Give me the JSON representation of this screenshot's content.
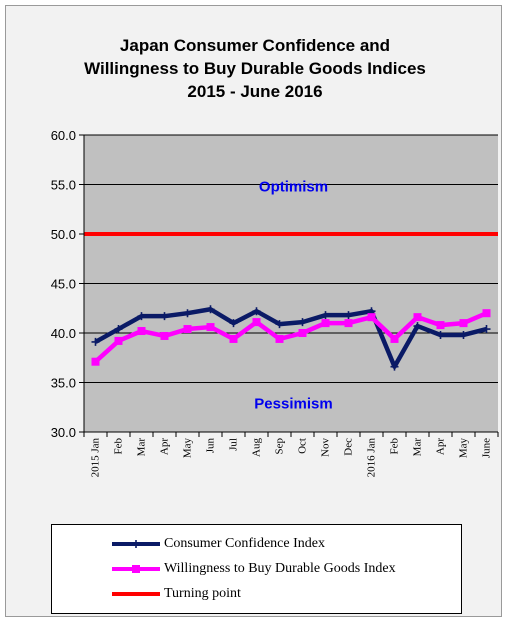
{
  "chart_data": {
    "type": "line",
    "title_lines": [
      "Japan Consumer Confidence and",
      "Willingness to Buy Durable Goods Indices",
      "2015 - June  2016"
    ],
    "categories": [
      "2015 Jan",
      "Feb",
      "Mar",
      "Apr",
      "May",
      "Jun",
      "Jul",
      "Aug",
      "Sep",
      "Oct",
      "Nov",
      "Dec",
      "2016 Jan",
      "Feb",
      "Mar",
      "Apr",
      "May",
      "June"
    ],
    "ylim": [
      30.0,
      60.0
    ],
    "yticks": [
      "30.0",
      "35.0",
      "40.0",
      "45.0",
      "50.0",
      "55.0",
      "60.0"
    ],
    "ytick_values": [
      30,
      35,
      40,
      45,
      50,
      55,
      60
    ],
    "grid": true,
    "series": [
      {
        "name": "Consumer Confidence Index",
        "color": "#0a1a66",
        "marker": "plus",
        "values": [
          39.1,
          40.4,
          41.7,
          41.7,
          42.0,
          42.4,
          41.0,
          42.2,
          40.9,
          41.1,
          41.8,
          41.8,
          42.2,
          36.6,
          40.7,
          39.8,
          39.8,
          40.4
        ]
      },
      {
        "name": "Willingness to Buy Durable Goods Index",
        "color": "#ff00ff",
        "marker": "square",
        "values": [
          37.1,
          39.2,
          40.2,
          39.7,
          40.4,
          40.6,
          39.4,
          41.1,
          39.4,
          40.0,
          41.0,
          41.0,
          41.6,
          39.4,
          41.6,
          40.8,
          41.0,
          42.0
        ]
      },
      {
        "name": "Turning point",
        "color": "#ff0000",
        "marker": "none",
        "values": [
          50,
          50,
          50,
          50,
          50,
          50,
          50,
          50,
          50,
          50,
          50,
          50,
          50,
          50,
          50,
          50,
          50,
          50
        ]
      }
    ],
    "annotations": [
      {
        "text": "Optimism",
        "x": "Sep",
        "y": 54.8,
        "color": "#0000ee"
      },
      {
        "text": "Pessimism",
        "x": "Sep",
        "y": 32.9,
        "color": "#0000ee"
      }
    ],
    "plot_bg": "#c0c0c0",
    "legend_position": "bottom"
  }
}
